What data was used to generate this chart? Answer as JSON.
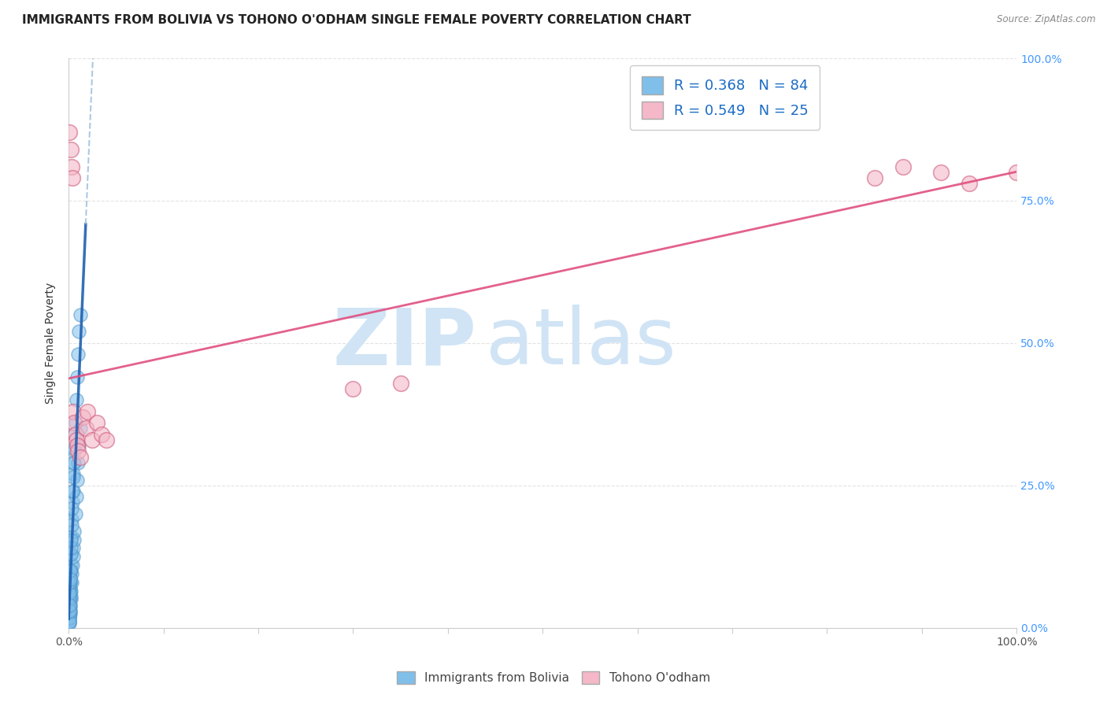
{
  "title": "IMMIGRANTS FROM BOLIVIA VS TOHONO O'ODHAM SINGLE FEMALE POVERTY CORRELATION CHART",
  "source": "Source: ZipAtlas.com",
  "ylabel": "Single Female Poverty",
  "xlim": [
    0,
    1
  ],
  "ylim": [
    0,
    1
  ],
  "ytick_labels_right": [
    "100.0%",
    "75.0%",
    "50.0%",
    "25.0%",
    "0.0%"
  ],
  "ytick_vals_right": [
    1.0,
    0.75,
    0.5,
    0.25,
    0.0
  ],
  "blue_R": 0.368,
  "blue_N": 84,
  "pink_R": 0.549,
  "pink_N": 25,
  "watermark_zip": "ZIP",
  "watermark_atlas": "atlas",
  "watermark_color": "#d0e4f5",
  "background_color": "#ffffff",
  "grid_color": "#dddddd",
  "blue_scatter_color": "#7fbfea",
  "blue_scatter_edge": "#5599cc",
  "pink_scatter_color": "#f4b8c8",
  "pink_scatter_edge": "#d06080",
  "blue_line_color": "#2060b0",
  "blue_dash_color": "#99bbdd",
  "pink_line_color": "#e05080",
  "title_fontsize": 11,
  "axis_label_fontsize": 10,
  "tick_label_fontsize": 10,
  "right_tick_color": "#4499ff",
  "blue_x": [
    0.0005,
    0.001,
    0.0008,
    0.0012,
    0.0006,
    0.0015,
    0.0009,
    0.0018,
    0.0004,
    0.0007,
    0.0011,
    0.0003,
    0.0016,
    0.0013,
    0.002,
    0.0022,
    0.0025,
    0.003,
    0.0035,
    0.004,
    0.0045,
    0.005,
    0.0055,
    0.006,
    0.007,
    0.008,
    0.009,
    0.01,
    0.011,
    0.012,
    0.0005,
    0.001,
    0.0008,
    0.0012,
    0.0006,
    0.0015,
    0.0009,
    0.0018,
    0.0004,
    0.0007,
    0.0011,
    0.0003,
    0.0016,
    0.0013,
    0.002,
    0.0022,
    0.0025,
    0.003,
    0.0035,
    0.004,
    0.0045,
    0.005,
    0.0055,
    0.006,
    0.007,
    0.008,
    0.009,
    0.01,
    0.011,
    0.012,
    0.0005,
    0.001,
    0.0008,
    0.0012,
    0.0006,
    0.0015,
    0.0009,
    0.0018,
    0.0004,
    0.0007,
    0.0011,
    0.0003,
    0.0016,
    0.0013,
    0.002,
    0.0022,
    0.0025,
    0.003,
    0.0035,
    0.004,
    0.0045,
    0.005,
    0.0055,
    0.006
  ],
  "blue_y": [
    0.03,
    0.05,
    0.04,
    0.06,
    0.035,
    0.07,
    0.045,
    0.08,
    0.02,
    0.04,
    0.06,
    0.025,
    0.08,
    0.065,
    0.1,
    0.11,
    0.13,
    0.16,
    0.19,
    0.22,
    0.24,
    0.27,
    0.29,
    0.31,
    0.36,
    0.4,
    0.44,
    0.48,
    0.52,
    0.55,
    0.01,
    0.02,
    0.015,
    0.025,
    0.01,
    0.03,
    0.02,
    0.04,
    0.008,
    0.018,
    0.028,
    0.01,
    0.038,
    0.028,
    0.05,
    0.055,
    0.065,
    0.08,
    0.095,
    0.11,
    0.125,
    0.14,
    0.155,
    0.17,
    0.2,
    0.23,
    0.26,
    0.29,
    0.32,
    0.35,
    0.05,
    0.07,
    0.06,
    0.08,
    0.055,
    0.09,
    0.065,
    0.1,
    0.03,
    0.06,
    0.08,
    0.04,
    0.1,
    0.085,
    0.13,
    0.14,
    0.155,
    0.18,
    0.21,
    0.24,
    0.265,
    0.29,
    0.315,
    0.34
  ],
  "pink_x": [
    0.001,
    0.002,
    0.003,
    0.004,
    0.005,
    0.006,
    0.007,
    0.008,
    0.009,
    0.01,
    0.012,
    0.015,
    0.018,
    0.02,
    0.025,
    0.03,
    0.035,
    0.04,
    0.3,
    0.35,
    0.85,
    0.88,
    0.92,
    0.95,
    1.0
  ],
  "pink_y": [
    0.87,
    0.84,
    0.81,
    0.79,
    0.38,
    0.36,
    0.34,
    0.33,
    0.32,
    0.31,
    0.3,
    0.37,
    0.35,
    0.38,
    0.33,
    0.36,
    0.34,
    0.33,
    0.42,
    0.43,
    0.79,
    0.81,
    0.8,
    0.78,
    0.8
  ]
}
